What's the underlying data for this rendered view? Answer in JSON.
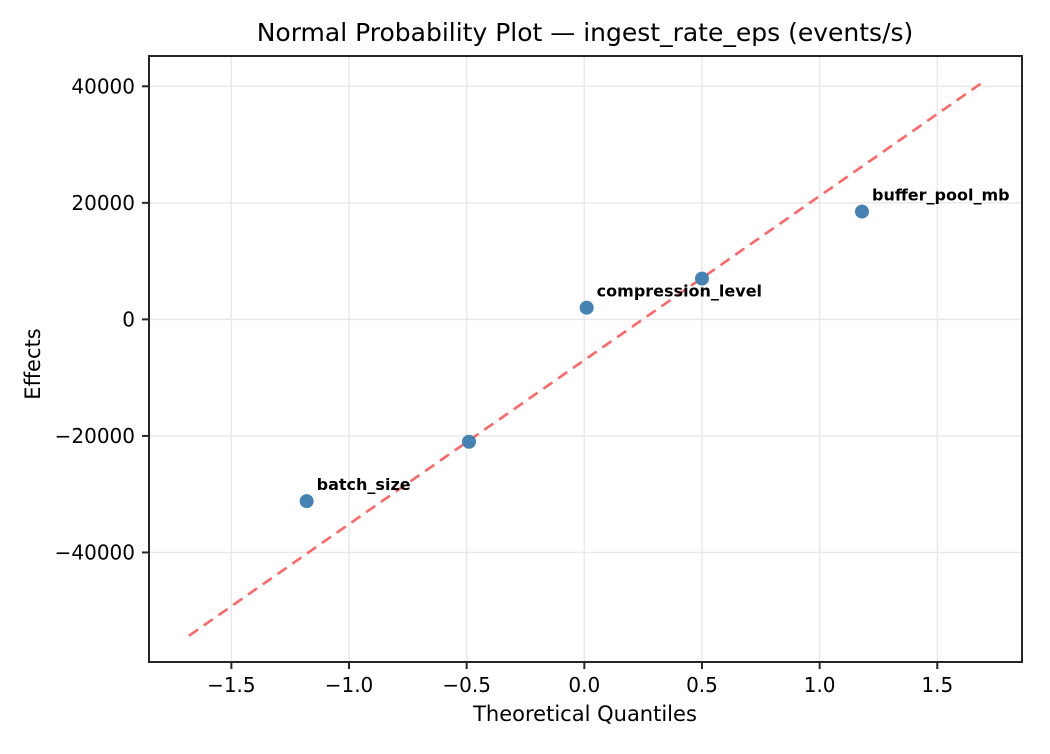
{
  "figure": {
    "background": "#ffffff"
  },
  "chart_data": {
    "type": "scatter",
    "title": "Normal Probability Plot — ingest_rate_eps (events/s)",
    "xlabel": "Theoretical Quantiles",
    "ylabel": "Effects",
    "xlim": [
      -1.85,
      1.86
    ],
    "ylim": [
      -58800,
      45200
    ],
    "grid": true,
    "legend": "none",
    "xticks": [
      {
        "value": -1.5,
        "label": "−1.5"
      },
      {
        "value": -1.0,
        "label": "−1.0"
      },
      {
        "value": -0.5,
        "label": "−0.5"
      },
      {
        "value": 0.0,
        "label": "0.0"
      },
      {
        "value": 0.5,
        "label": "0.5"
      },
      {
        "value": 1.0,
        "label": "1.0"
      },
      {
        "value": 1.5,
        "label": "1.5"
      }
    ],
    "yticks": [
      {
        "value": -40000,
        "label": "−40000"
      },
      {
        "value": -20000,
        "label": "−20000"
      },
      {
        "value": 0,
        "label": "0"
      },
      {
        "value": 20000,
        "label": "20000"
      },
      {
        "value": 40000,
        "label": "40000"
      }
    ],
    "points": [
      {
        "x": -1.18,
        "y": -31200,
        "label": "batch_size"
      },
      {
        "x": -0.49,
        "y": -21000,
        "label": null
      },
      {
        "x": 0.01,
        "y": 2000,
        "label": "compression_level"
      },
      {
        "x": 0.5,
        "y": 7000,
        "label": null
      },
      {
        "x": 1.18,
        "y": 18500,
        "label": "buffer_pool_mb"
      }
    ],
    "fit_line": {
      "x1": -1.68,
      "y1": -54300,
      "x2": 1.69,
      "y2": 40600,
      "style": "dashed"
    },
    "colors": {
      "point": "#4682b4",
      "fit_line": "#ff6666",
      "annotation": "#ee0000",
      "grid": "#e8e8e8",
      "spine": "#262626",
      "text": "#000000"
    }
  }
}
